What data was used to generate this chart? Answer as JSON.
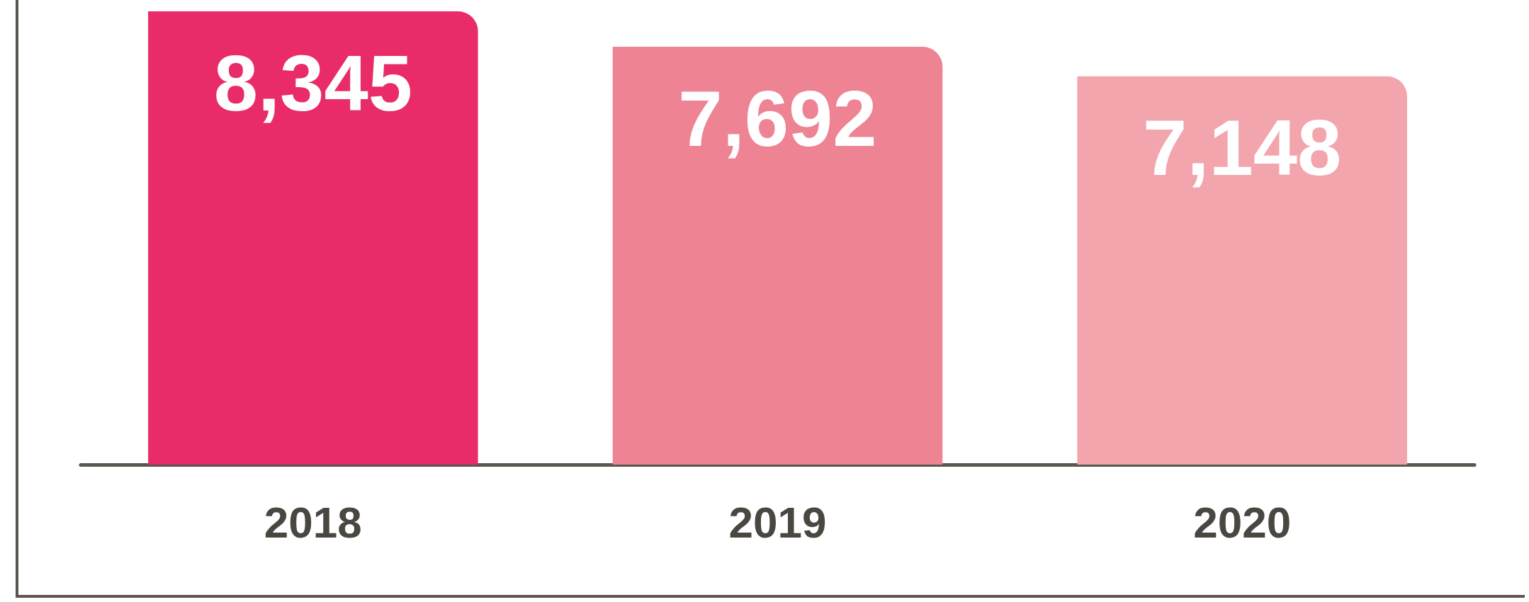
{
  "chart_data": {
    "type": "bar",
    "categories": [
      "2018",
      "2019",
      "2020"
    ],
    "values": [
      8345,
      7692,
      7148
    ],
    "colors": [
      "#e92c68",
      "#ee8393",
      "#f2a5ac"
    ],
    "value_labels": [
      "8,345",
      "7,692",
      "7,148"
    ]
  }
}
